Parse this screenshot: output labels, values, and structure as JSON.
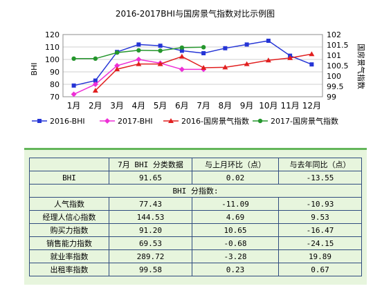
{
  "chart_data": {
    "type": "line",
    "title": "2016-2017BHI与国房景气指数对比示例图",
    "categories": [
      "1月",
      "2月",
      "3月",
      "4月",
      "5月",
      "6月",
      "7月",
      "8月",
      "9月",
      "10月",
      "11月",
      "12月"
    ],
    "ylabel": "BHI",
    "y2label": "国房景气指数",
    "ylim": [
      70,
      120
    ],
    "yticks": [
      70,
      80,
      90,
      100,
      110,
      120
    ],
    "y2lim": [
      99,
      102
    ],
    "y2ticks": [
      "99",
      "99.5",
      "100",
      "100.5",
      "101",
      "101.5",
      "102"
    ],
    "grid": true,
    "legend_position": "bottom",
    "series": [
      {
        "name": "2016-BHI",
        "axis": "left",
        "color": "#2535d6",
        "marker": "square",
        "values": [
          79,
          83,
          106,
          112,
          111,
          107,
          105,
          109,
          112,
          115,
          103,
          96
        ]
      },
      {
        "name": "2017-BHI",
        "axis": "left",
        "color": "#ee2fd6",
        "marker": "diamond",
        "values": [
          72,
          80,
          95,
          100,
          97,
          92,
          92,
          null,
          null,
          null,
          null,
          null
        ]
      },
      {
        "name": "2016-国房景气指数",
        "axis": "right",
        "color": "#e11f1f",
        "marker": "triangle",
        "values": [
          null,
          99.3,
          100.33,
          100.58,
          100.58,
          100.94,
          100.4,
          100.42,
          100.58,
          100.76,
          100.87,
          101.06
        ]
      },
      {
        "name": "2017-国房景气指数",
        "axis": "right",
        "color": "#24962c",
        "marker": "circle",
        "values": [
          100.84,
          100.84,
          101.13,
          101.24,
          101.22,
          101.37,
          101.39,
          null,
          null,
          null,
          null,
          null
        ]
      }
    ]
  },
  "table": {
    "header": [
      "",
      "7月 BHI 分类数据",
      "与上月环比（点）",
      "与去年同比（点）"
    ],
    "bhi_row": [
      "BHI",
      "91.65",
      "0.02",
      "-13.55"
    ],
    "subheader": "BHI 分指数:",
    "rows": [
      [
        "人气指数",
        "77.43",
        "-11.09",
        "-10.93"
      ],
      [
        "经理人信心指数",
        "144.53",
        "4.69",
        "9.53"
      ],
      [
        "购买力指数",
        "91.20",
        "10.65",
        "-16.47"
      ],
      [
        "销售能力指数",
        "69.53",
        "-0.68",
        "-24.15"
      ],
      [
        "就业率指数",
        "289.72",
        "-3.28",
        "19.89"
      ],
      [
        "出租率指数",
        "99.58",
        "0.23",
        "0.67"
      ]
    ]
  }
}
